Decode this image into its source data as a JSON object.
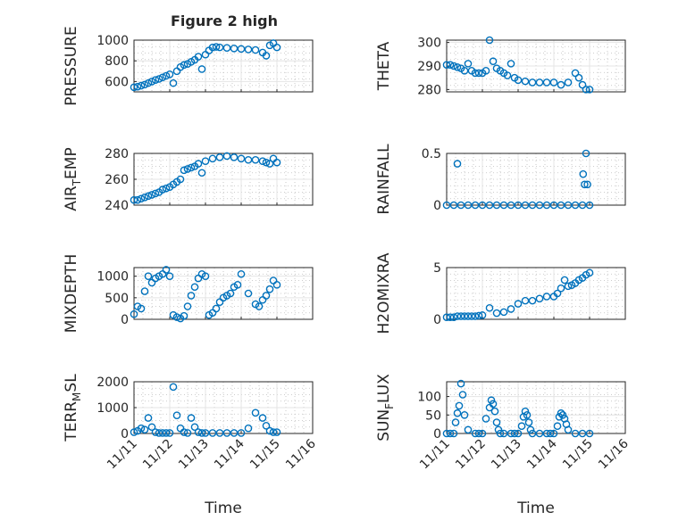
{
  "figure": {
    "title": "Figure 2 high",
    "marker_color": "#0072BD"
  },
  "chart_data": [
    {
      "type": "scatter",
      "key": "pressure",
      "ylabel": "PRESSURE",
      "xlabel": "",
      "xlim": [
        11,
        16
      ],
      "ylim": [
        500,
        1000
      ],
      "yticks": [
        600,
        800,
        1000
      ],
      "x": [
        11.0,
        11.1,
        11.2,
        11.3,
        11.4,
        11.5,
        11.6,
        11.7,
        11.8,
        11.9,
        12.0,
        12.1,
        12.2,
        12.3,
        12.4,
        12.5,
        12.6,
        12.7,
        12.8,
        12.9,
        13.0,
        13.1,
        13.2,
        13.3,
        13.4,
        13.6,
        13.8,
        14.0,
        14.2,
        14.4,
        14.6,
        14.7,
        14.8,
        14.9,
        15.0
      ],
      "y": [
        545,
        550,
        560,
        570,
        585,
        600,
        615,
        625,
        640,
        655,
        670,
        585,
        700,
        740,
        760,
        770,
        790,
        810,
        840,
        720,
        860,
        900,
        930,
        935,
        930,
        925,
        920,
        915,
        910,
        905,
        880,
        850,
        950,
        970,
        930
      ]
    },
    {
      "type": "scatter",
      "key": "theta",
      "ylabel": "THETA",
      "xlabel": "",
      "xlim": [
        11,
        16
      ],
      "ylim": [
        279,
        301
      ],
      "yticks": [
        280,
        290,
        300
      ],
      "x": [
        11.0,
        11.1,
        11.2,
        11.3,
        11.4,
        11.5,
        11.6,
        11.7,
        11.8,
        11.9,
        12.0,
        12.1,
        12.2,
        12.3,
        12.4,
        12.5,
        12.6,
        12.7,
        12.8,
        12.9,
        13.0,
        13.2,
        13.4,
        13.6,
        13.8,
        14.0,
        14.2,
        14.4,
        14.6,
        14.7,
        14.8,
        14.9,
        15.0
      ],
      "y": [
        290.5,
        290.5,
        290,
        289.5,
        289,
        288,
        291,
        288,
        287,
        287,
        287,
        288,
        301,
        292,
        289,
        288,
        287,
        286,
        291,
        285,
        284,
        283.5,
        283,
        283,
        283,
        283,
        282,
        283,
        287,
        285,
        282,
        280,
        280
      ]
    },
    {
      "type": "scatter",
      "key": "air_temp",
      "ylabel": "AIR_TEMP",
      "xlabel": "",
      "xlim": [
        11,
        16
      ],
      "ylim": [
        240,
        280
      ],
      "yticks": [
        240,
        260,
        280
      ],
      "x": [
        11.0,
        11.1,
        11.2,
        11.3,
        11.4,
        11.5,
        11.6,
        11.7,
        11.8,
        11.9,
        12.0,
        12.1,
        12.2,
        12.3,
        12.4,
        12.5,
        12.6,
        12.7,
        12.8,
        12.9,
        13.0,
        13.2,
        13.4,
        13.6,
        13.8,
        14.0,
        14.2,
        14.4,
        14.6,
        14.7,
        14.8,
        14.9,
        15.0
      ],
      "y": [
        244,
        244,
        245,
        246,
        247,
        248,
        249,
        250,
        252,
        253,
        254,
        256,
        258,
        260,
        267,
        268,
        269,
        270,
        272,
        265,
        274,
        276,
        277,
        278,
        277,
        276,
        275,
        275,
        274,
        273,
        272,
        276,
        273
      ]
    },
    {
      "type": "scatter",
      "key": "rainfall",
      "ylabel": "RAINFALL",
      "xlabel": "",
      "xlim": [
        11,
        16
      ],
      "ylim": [
        0,
        0.5
      ],
      "yticks": [
        0,
        0.5
      ],
      "x": [
        11.0,
        11.2,
        11.4,
        11.6,
        11.8,
        12.0,
        12.2,
        12.4,
        12.6,
        12.8,
        13.0,
        13.2,
        13.4,
        13.6,
        13.8,
        14.0,
        14.2,
        14.4,
        14.6,
        14.8,
        15.0,
        11.3,
        14.82,
        14.86,
        14.9,
        14.94
      ],
      "y": [
        0,
        0,
        0,
        0,
        0,
        0,
        0,
        0,
        0,
        0,
        0,
        0,
        0,
        0,
        0,
        0,
        0,
        0,
        0,
        0,
        0,
        0.4,
        0.3,
        0.2,
        0.5,
        0.2
      ]
    },
    {
      "type": "scatter",
      "key": "mixdepth",
      "ylabel": "MIXDEPTH",
      "xlabel": "",
      "xlim": [
        11,
        16
      ],
      "ylim": [
        0,
        1200
      ],
      "yticks": [
        0,
        500,
        1000
      ],
      "x": [
        11.0,
        11.1,
        11.2,
        11.3,
        11.4,
        11.5,
        11.6,
        11.7,
        11.8,
        11.9,
        12.0,
        12.1,
        12.2,
        12.3,
        12.4,
        12.5,
        12.6,
        12.7,
        12.8,
        12.9,
        13.0,
        13.1,
        13.2,
        13.3,
        13.4,
        13.5,
        13.6,
        13.7,
        13.8,
        13.9,
        14.0,
        14.2,
        14.4,
        14.5,
        14.6,
        14.7,
        14.8,
        14.9,
        15.0
      ],
      "y": [
        120,
        300,
        250,
        650,
        1000,
        850,
        950,
        1000,
        1050,
        1150,
        1000,
        100,
        50,
        20,
        80,
        300,
        550,
        750,
        950,
        1050,
        1000,
        100,
        150,
        250,
        400,
        500,
        550,
        600,
        750,
        800,
        1050,
        600,
        350,
        300,
        450,
        550,
        700,
        900,
        800
      ]
    },
    {
      "type": "scatter",
      "key": "h2omixra",
      "ylabel": "H2OMIXRA",
      "xlabel": "",
      "xlim": [
        11,
        16
      ],
      "ylim": [
        0,
        5
      ],
      "yticks": [
        0,
        5
      ],
      "x": [
        11.0,
        11.1,
        11.2,
        11.3,
        11.4,
        11.5,
        11.6,
        11.7,
        11.8,
        11.9,
        12.0,
        12.2,
        12.4,
        12.6,
        12.8,
        13.0,
        13.2,
        13.4,
        13.6,
        13.8,
        14.0,
        14.1,
        14.2,
        14.3,
        14.4,
        14.5,
        14.6,
        14.7,
        14.8,
        14.9,
        15.0
      ],
      "y": [
        0.2,
        0.2,
        0.2,
        0.3,
        0.3,
        0.3,
        0.3,
        0.3,
        0.3,
        0.35,
        0.4,
        1.1,
        0.6,
        0.7,
        1.0,
        1.5,
        1.8,
        1.8,
        2.0,
        2.2,
        2.2,
        2.5,
        3.0,
        3.8,
        3.2,
        3.3,
        3.5,
        3.8,
        4.0,
        4.3,
        4.5
      ]
    },
    {
      "type": "scatter",
      "key": "terr_msl",
      "ylabel": "TERR_MSL",
      "xlabel": "Time",
      "xlim": [
        11,
        16
      ],
      "ylim": [
        0,
        2000
      ],
      "yticks": [
        0,
        1000,
        2000
      ],
      "xtick_values": [
        11,
        12,
        13,
        14,
        15,
        16
      ],
      "xtick_labels": [
        "11/11",
        "11/12",
        "11/13",
        "11/14",
        "11/15",
        "11/16"
      ],
      "x": [
        11.0,
        11.1,
        11.2,
        11.3,
        11.4,
        11.5,
        11.6,
        11.7,
        11.8,
        11.9,
        12.0,
        12.1,
        12.2,
        12.3,
        12.4,
        12.5,
        12.6,
        12.7,
        12.8,
        12.9,
        13.0,
        13.2,
        13.4,
        13.6,
        13.8,
        14.0,
        14.2,
        14.4,
        14.6,
        14.7,
        14.8,
        14.9,
        15.0
      ],
      "y": [
        50,
        100,
        200,
        150,
        600,
        250,
        50,
        20,
        20,
        20,
        20,
        1800,
        700,
        200,
        50,
        20,
        600,
        250,
        50,
        20,
        20,
        20,
        20,
        20,
        20,
        20,
        200,
        800,
        600,
        300,
        100,
        50,
        50
      ]
    },
    {
      "type": "scatter",
      "key": "sun_flux",
      "ylabel": "SUN_FLUX",
      "xlabel": "Time",
      "xlim": [
        11,
        16
      ],
      "ylim": [
        0,
        140
      ],
      "yticks": [
        0,
        50,
        100
      ],
      "xtick_values": [
        11,
        12,
        13,
        14,
        15,
        16
      ],
      "xtick_labels": [
        "11/11",
        "11/12",
        "11/13",
        "11/14",
        "11/15",
        "11/16"
      ],
      "x": [
        11.0,
        11.1,
        11.2,
        11.25,
        11.3,
        11.35,
        11.4,
        11.45,
        11.5,
        11.6,
        11.8,
        11.9,
        12.0,
        12.1,
        12.2,
        12.25,
        12.3,
        12.35,
        12.4,
        12.45,
        12.5,
        12.6,
        12.8,
        12.9,
        13.0,
        13.1,
        13.15,
        13.2,
        13.25,
        13.3,
        13.35,
        13.4,
        13.6,
        13.8,
        13.9,
        14.0,
        14.1,
        14.15,
        14.2,
        14.25,
        14.3,
        14.35,
        14.4,
        14.6,
        14.8,
        15.0
      ],
      "y": [
        0,
        0,
        0,
        30,
        55,
        75,
        135,
        105,
        50,
        10,
        0,
        0,
        0,
        40,
        70,
        90,
        80,
        60,
        30,
        10,
        0,
        0,
        0,
        0,
        0,
        20,
        45,
        60,
        50,
        30,
        10,
        0,
        0,
        0,
        0,
        0,
        20,
        45,
        55,
        50,
        40,
        25,
        10,
        0,
        0,
        0
      ]
    }
  ]
}
